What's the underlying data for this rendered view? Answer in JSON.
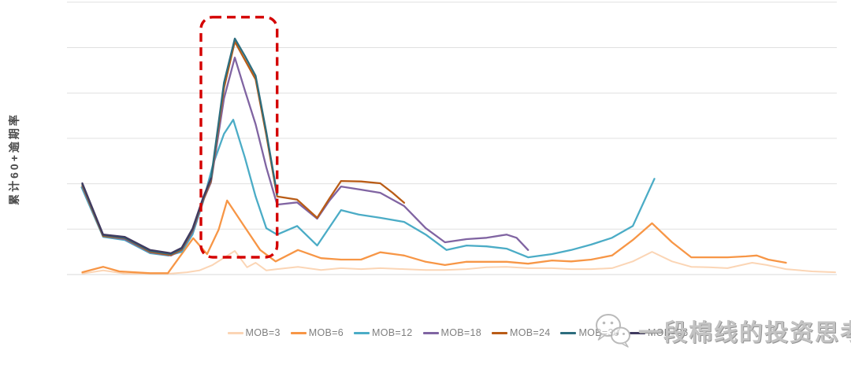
{
  "watermark": {
    "text": "一段棉线的投资思考",
    "icon": "wechat-icon"
  },
  "chart_data": {
    "type": "line",
    "title": "",
    "xlabel": "",
    "ylabel": "累计60+逾期率",
    "x_axis": {
      "tick_labels_visible": false,
      "note": "vintage/cohort axis, no labels shown; x stored as percent of plot width 0-100"
    },
    "y_axis": {
      "tick_labels_visible": false,
      "gridline_count": 7,
      "units": "gridline intervals above baseline (0 = bottom axis, 6 = top gridline)"
    },
    "grid": "horizontal only",
    "legend_position": "bottom-center",
    "colors": {
      "gridline": "#e0e0e0",
      "baseline": "#d8d8d8",
      "annotation_red": "#d40000",
      "legend_text": "#7f7f7f",
      "axis_title_text": "#4a4a4a"
    },
    "annotation": {
      "shape": "rounded-dashed-rect",
      "color": "#d40000",
      "x_pct": [
        17.4,
        27.3
      ],
      "y_units": [
        0.38,
        5.67
      ],
      "meaning": "highlights the delinquency spike vintages"
    },
    "series": [
      {
        "name": "MOB=3",
        "color": "#fbd5b5",
        "width": 2,
        "points": [
          [
            2.0,
            0.02
          ],
          [
            4.7,
            0.09
          ],
          [
            7.5,
            0.02
          ],
          [
            10.8,
            0.02
          ],
          [
            13.5,
            0.02
          ],
          [
            15.6,
            0.05
          ],
          [
            17.2,
            0.09
          ],
          [
            18.9,
            0.21
          ],
          [
            21.8,
            0.52
          ],
          [
            23.4,
            0.16
          ],
          [
            24.5,
            0.26
          ],
          [
            25.9,
            0.09
          ],
          [
            27.3,
            0.12
          ],
          [
            30.0,
            0.17
          ],
          [
            33.0,
            0.1
          ],
          [
            35.6,
            0.14
          ],
          [
            38.2,
            0.12
          ],
          [
            40.7,
            0.14
          ],
          [
            43.8,
            0.12
          ],
          [
            46.6,
            0.1
          ],
          [
            49.1,
            0.1
          ],
          [
            51.9,
            0.12
          ],
          [
            54.5,
            0.16
          ],
          [
            57.1,
            0.17
          ],
          [
            59.9,
            0.14
          ],
          [
            63.0,
            0.14
          ],
          [
            65.5,
            0.12
          ],
          [
            68.1,
            0.12
          ],
          [
            70.8,
            0.14
          ],
          [
            73.5,
            0.29
          ],
          [
            76.0,
            0.5
          ],
          [
            78.6,
            0.29
          ],
          [
            81.1,
            0.17
          ],
          [
            83.4,
            0.16
          ],
          [
            85.8,
            0.14
          ],
          [
            89.0,
            0.26
          ],
          [
            90.9,
            0.21
          ],
          [
            93.4,
            0.12
          ],
          [
            96.8,
            0.07
          ],
          [
            99.8,
            0.05
          ]
        ]
      },
      {
        "name": "MOB=6",
        "color": "#f79646",
        "width": 2.3,
        "points": [
          [
            2.0,
            0.05
          ],
          [
            4.7,
            0.17
          ],
          [
            6.8,
            0.07
          ],
          [
            10.8,
            0.03
          ],
          [
            13.1,
            0.03
          ],
          [
            16.4,
            0.8
          ],
          [
            18.2,
            0.45
          ],
          [
            19.7,
            0.99
          ],
          [
            20.8,
            1.63
          ],
          [
            23.0,
            1.07
          ],
          [
            25.1,
            0.54
          ],
          [
            27.1,
            0.29
          ],
          [
            30.0,
            0.54
          ],
          [
            33.0,
            0.36
          ],
          [
            35.6,
            0.33
          ],
          [
            38.2,
            0.33
          ],
          [
            40.7,
            0.49
          ],
          [
            43.8,
            0.42
          ],
          [
            46.6,
            0.28
          ],
          [
            49.1,
            0.21
          ],
          [
            51.9,
            0.28
          ],
          [
            54.5,
            0.28
          ],
          [
            57.1,
            0.28
          ],
          [
            59.9,
            0.24
          ],
          [
            63.0,
            0.31
          ],
          [
            65.5,
            0.29
          ],
          [
            68.1,
            0.33
          ],
          [
            70.8,
            0.42
          ],
          [
            73.5,
            0.76
          ],
          [
            76.0,
            1.13
          ],
          [
            78.6,
            0.71
          ],
          [
            81.1,
            0.38
          ],
          [
            83.4,
            0.38
          ],
          [
            85.8,
            0.38
          ],
          [
            88.2,
            0.4
          ],
          [
            89.6,
            0.42
          ],
          [
            91.1,
            0.33
          ],
          [
            93.4,
            0.26
          ]
        ]
      },
      {
        "name": "MOB=12",
        "color": "#4bacc6",
        "width": 2.3,
        "points": [
          [
            1.9,
            1.92
          ],
          [
            4.7,
            0.83
          ],
          [
            7.5,
            0.76
          ],
          [
            10.8,
            0.47
          ],
          [
            13.2,
            0.42
          ],
          [
            14.9,
            0.5
          ],
          [
            16.3,
            0.88
          ],
          [
            17.7,
            1.61
          ],
          [
            19.0,
            2.44
          ],
          [
            20.4,
            3.1
          ],
          [
            21.6,
            3.41
          ],
          [
            23.1,
            2.58
          ],
          [
            24.5,
            1.72
          ],
          [
            25.9,
            1.02
          ],
          [
            27.3,
            0.88
          ],
          [
            29.9,
            1.07
          ],
          [
            32.5,
            0.64
          ],
          [
            35.6,
            1.42
          ],
          [
            37.9,
            1.32
          ],
          [
            40.7,
            1.25
          ],
          [
            43.8,
            1.16
          ],
          [
            46.6,
            0.88
          ],
          [
            49.3,
            0.54
          ],
          [
            51.9,
            0.64
          ],
          [
            54.5,
            0.62
          ],
          [
            57.1,
            0.57
          ],
          [
            59.9,
            0.38
          ],
          [
            63.0,
            0.45
          ],
          [
            65.5,
            0.54
          ],
          [
            68.1,
            0.66
          ],
          [
            70.8,
            0.81
          ],
          [
            73.5,
            1.07
          ],
          [
            76.3,
            2.11
          ]
        ]
      },
      {
        "name": "MOB=18",
        "color": "#8064a2",
        "width": 2.3,
        "points": [
          [
            2.0,
            1.94
          ],
          [
            4.7,
            0.85
          ],
          [
            7.5,
            0.78
          ],
          [
            10.8,
            0.49
          ],
          [
            13.5,
            0.42
          ],
          [
            14.9,
            0.54
          ],
          [
            16.3,
            0.94
          ],
          [
            17.7,
            1.63
          ],
          [
            18.7,
            2.03
          ],
          [
            20.4,
            3.88
          ],
          [
            21.8,
            4.78
          ],
          [
            23.1,
            4.06
          ],
          [
            24.5,
            3.31
          ],
          [
            25.9,
            2.36
          ],
          [
            27.3,
            1.54
          ],
          [
            29.9,
            1.59
          ],
          [
            32.5,
            1.23
          ],
          [
            34.1,
            1.63
          ],
          [
            35.6,
            1.94
          ],
          [
            38.2,
            1.87
          ],
          [
            40.7,
            1.8
          ],
          [
            43.8,
            1.51
          ],
          [
            46.6,
            1.02
          ],
          [
            49.1,
            0.71
          ],
          [
            51.9,
            0.78
          ],
          [
            54.5,
            0.81
          ],
          [
            57.1,
            0.88
          ],
          [
            58.4,
            0.81
          ],
          [
            59.9,
            0.54
          ]
        ]
      },
      {
        "name": "MOB=24",
        "color": "#b95c16",
        "width": 2.3,
        "points": [
          [
            2.0,
            1.96
          ],
          [
            4.7,
            0.85
          ],
          [
            7.5,
            0.8
          ],
          [
            10.8,
            0.5
          ],
          [
            13.5,
            0.43
          ],
          [
            14.9,
            0.55
          ],
          [
            16.3,
            0.97
          ],
          [
            17.7,
            1.65
          ],
          [
            18.7,
            2.06
          ],
          [
            20.4,
            4.11
          ],
          [
            21.8,
            5.13
          ],
          [
            23.1,
            4.73
          ],
          [
            24.5,
            4.3
          ],
          [
            25.9,
            3.07
          ],
          [
            27.3,
            1.72
          ],
          [
            29.9,
            1.65
          ],
          [
            32.5,
            1.25
          ],
          [
            34.1,
            1.68
          ],
          [
            35.6,
            2.06
          ],
          [
            38.2,
            2.05
          ],
          [
            40.7,
            2.01
          ],
          [
            42.3,
            1.8
          ],
          [
            43.8,
            1.58
          ]
        ]
      },
      {
        "name": "MOB=30",
        "color": "#2d6d7e",
        "width": 2.3,
        "points": [
          [
            2.0,
            1.99
          ],
          [
            4.7,
            0.87
          ],
          [
            7.5,
            0.81
          ],
          [
            10.8,
            0.52
          ],
          [
            13.5,
            0.45
          ],
          [
            14.9,
            0.57
          ],
          [
            16.3,
            0.99
          ],
          [
            17.7,
            1.68
          ],
          [
            18.7,
            2.1
          ],
          [
            20.4,
            4.23
          ],
          [
            21.8,
            5.2
          ],
          [
            23.1,
            4.82
          ],
          [
            24.5,
            4.38
          ],
          [
            25.9,
            3.14
          ],
          [
            27.3,
            1.77
          ]
        ]
      },
      {
        "name": "MOB=36",
        "color": "#403a60",
        "width": 2.3,
        "points": [
          [
            2.0,
            2.01
          ],
          [
            4.7,
            0.88
          ],
          [
            7.5,
            0.83
          ],
          [
            10.8,
            0.54
          ],
          [
            13.5,
            0.47
          ],
          [
            14.9,
            0.59
          ],
          [
            16.3,
            1.01
          ],
          [
            17.7,
            1.7
          ],
          [
            18.7,
            2.12
          ]
        ]
      }
    ]
  }
}
